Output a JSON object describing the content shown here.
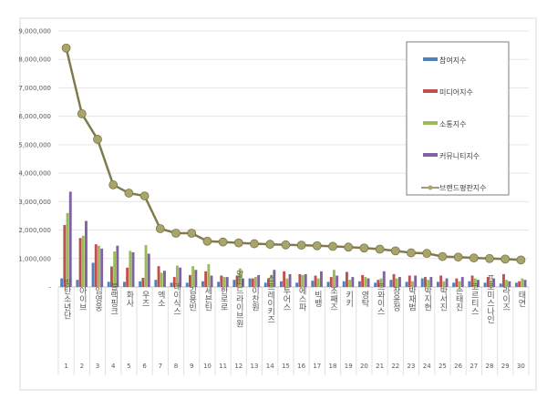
{
  "chart_data": {
    "type": "bar+line",
    "title": "",
    "xlabel": "",
    "ylabel": "",
    "ylim": [
      0,
      9000000
    ],
    "yticks": [
      "-",
      "1,000,000",
      "2,000,000",
      "3,000,000",
      "4,000,000",
      "5,000,000",
      "6,000,000",
      "7,000,000",
      "8,000,000",
      "9,000,000"
    ],
    "grid": true,
    "legend_position": "top-right",
    "categories": [
      "방탄소년단",
      "아이브",
      "임영웅",
      "블랙핑크",
      "화사",
      "우즈",
      "엑소",
      "데이식스",
      "김용빈",
      "세븐틴",
      "한로로",
      "알파드라이브원",
      "이찬원",
      "스트레이키즈",
      "투어스",
      "에스파",
      "빅뱅",
      "조째즈",
      "키키",
      "영탁",
      "트와이스",
      "장윤정",
      "박재범",
      "박지현",
      "박서진",
      "손태진",
      "코르티스",
      "프로미스나인",
      "라이즈",
      "태연"
    ],
    "ranks": [
      "1",
      "2",
      "3",
      "4",
      "5",
      "6",
      "7",
      "8",
      "9",
      "10",
      "11",
      "12",
      "13",
      "14",
      "15",
      "16",
      "17",
      "18",
      "19",
      "20",
      "21",
      "22",
      "23",
      "24",
      "25",
      "26",
      "27",
      "28",
      "29",
      "30"
    ],
    "series": [
      {
        "name": "참여지수",
        "type": "bar",
        "color": "#4f81bd",
        "values": [
          300000,
          250000,
          850000,
          180000,
          180000,
          200000,
          250000,
          150000,
          150000,
          200000,
          180000,
          250000,
          300000,
          150000,
          200000,
          150000,
          220000,
          180000,
          200000,
          200000,
          150000,
          250000,
          180000,
          300000,
          180000,
          150000,
          200000,
          150000,
          120000,
          150000
        ]
      },
      {
        "name": "미디어지수",
        "type": "bar",
        "color": "#c0504d",
        "values": [
          2180000,
          1720000,
          1500000,
          720000,
          680000,
          320000,
          730000,
          350000,
          420000,
          550000,
          400000,
          400000,
          300000,
          300000,
          550000,
          450000,
          400000,
          350000,
          530000,
          420000,
          250000,
          450000,
          400000,
          350000,
          400000,
          300000,
          400000,
          350000,
          450000,
          200000
        ]
      },
      {
        "name": "소통지수",
        "type": "bar",
        "color": "#9bbb59",
        "values": [
          2600000,
          1800000,
          1450000,
          1250000,
          1270000,
          1470000,
          500000,
          750000,
          730000,
          800000,
          350000,
          650000,
          350000,
          420000,
          300000,
          420000,
          300000,
          600000,
          250000,
          350000,
          300000,
          300000,
          200000,
          250000,
          200000,
          200000,
          300000,
          200000,
          250000,
          300000
        ]
      },
      {
        "name": "커뮤니티지수",
        "type": "bar",
        "color": "#8064a2",
        "values": [
          3350000,
          2320000,
          1350000,
          1450000,
          1220000,
          1170000,
          570000,
          680000,
          600000,
          400000,
          350000,
          300000,
          420000,
          600000,
          450000,
          450000,
          550000,
          400000,
          350000,
          300000,
          550000,
          350000,
          400000,
          350000,
          300000,
          350000,
          250000,
          300000,
          200000,
          250000
        ]
      },
      {
        "name": "브랜드평판지수",
        "type": "line",
        "color": "#7f7b4e",
        "values": [
          8400000,
          6090000,
          5190000,
          3590000,
          3300000,
          3200000,
          2050000,
          1890000,
          1890000,
          1610000,
          1580000,
          1550000,
          1520000,
          1500000,
          1480000,
          1470000,
          1450000,
          1430000,
          1400000,
          1370000,
          1330000,
          1270000,
          1200000,
          1180000,
          1070000,
          1050000,
          1020000,
          1000000,
          980000,
          950000
        ]
      }
    ]
  }
}
